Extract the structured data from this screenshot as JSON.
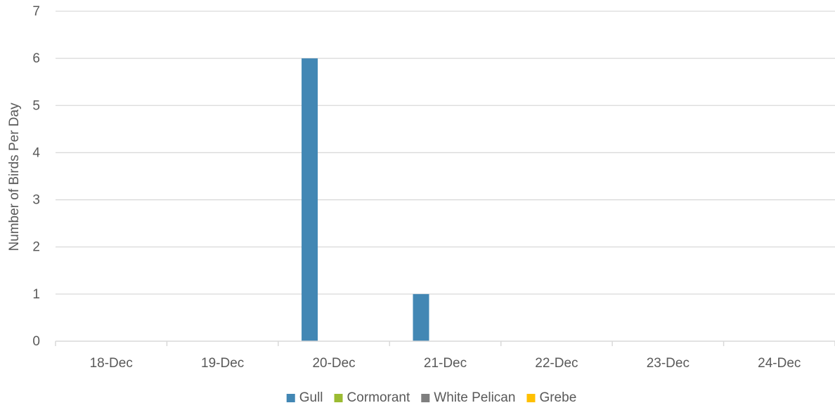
{
  "chart_data": {
    "type": "bar",
    "title": "",
    "xlabel": "",
    "ylabel": "Number of Birds Per Day",
    "categories": [
      "18-Dec",
      "19-Dec",
      "20-Dec",
      "21-Dec",
      "22-Dec",
      "23-Dec",
      "24-Dec"
    ],
    "ylim": [
      0,
      7
    ],
    "yticks": [
      0,
      1,
      2,
      3,
      4,
      5,
      6,
      7
    ],
    "grid": true,
    "legend_position": "bottom",
    "series": [
      {
        "name": "Gull",
        "color": "#4287b4",
        "values": [
          0,
          0,
          6,
          1,
          0,
          0,
          0
        ]
      },
      {
        "name": "Cormorant",
        "color": "#9bbb32",
        "values": [
          0,
          0,
          0,
          0,
          0,
          0,
          0
        ]
      },
      {
        "name": "White Pelican",
        "color": "#7f7f7f",
        "values": [
          0,
          0,
          0,
          0,
          0,
          0,
          0
        ]
      },
      {
        "name": "Grebe",
        "color": "#ffc000",
        "values": [
          0,
          0,
          0,
          0,
          0,
          0,
          0
        ]
      }
    ]
  }
}
